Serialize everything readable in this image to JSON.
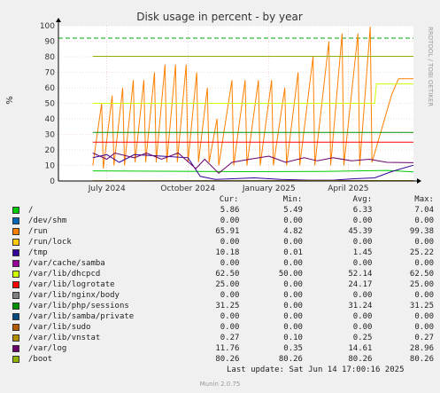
{
  "chart_data": {
    "type": "line",
    "title": "Disk usage in percent - by year",
    "ylabel": "%",
    "ylim": [
      0,
      100
    ],
    "yticks": [
      0,
      10,
      20,
      30,
      40,
      50,
      60,
      70,
      80,
      90,
      100
    ],
    "xlim": [
      "2024-05-07",
      "2025-06-14"
    ],
    "xticks": [
      {
        "label": "July 2024",
        "date": "2024-07-01"
      },
      {
        "label": "October 2024",
        "date": "2024-10-01"
      },
      {
        "label": "January 2025",
        "date": "2025-01-01"
      },
      {
        "label": "April 2025",
        "date": "2025-04-01"
      }
    ],
    "warning_line": 92,
    "grid": true,
    "side_text": "RRDTOOL / TOBI OETIKER",
    "columns": [
      "Cur:",
      "Min:",
      "Avg:",
      "Max:"
    ],
    "series": [
      {
        "name": "/",
        "color": "#00cc00",
        "cur": "5.86",
        "min": "5.49",
        "avg": "6.33",
        "max": "7.04",
        "points": [
          [
            "2024-06-15",
            6.5
          ],
          [
            "2024-09-01",
            6.3
          ],
          [
            "2024-12-01",
            6.0
          ],
          [
            "2025-03-01",
            6.1
          ],
          [
            "2025-05-15",
            6.8
          ],
          [
            "2025-06-14",
            5.86
          ]
        ]
      },
      {
        "name": "/dev/shm",
        "color": "#0066b3",
        "cur": "0.00",
        "min": "0.00",
        "avg": "0.00",
        "max": "0.00",
        "points": [
          [
            "2024-06-15",
            0
          ],
          [
            "2025-06-14",
            0
          ]
        ]
      },
      {
        "name": "/run",
        "color": "#ff8000",
        "cur": "65.91",
        "min": "4.82",
        "avg": "45.39",
        "max": "99.38",
        "points": [
          [
            "2024-06-15",
            10
          ],
          [
            "2024-06-25",
            50
          ],
          [
            "2024-06-27",
            8
          ],
          [
            "2024-07-07",
            55
          ],
          [
            "2024-07-09",
            10
          ],
          [
            "2024-07-19",
            60
          ],
          [
            "2024-07-21",
            10
          ],
          [
            "2024-07-31",
            65
          ],
          [
            "2024-08-02",
            12
          ],
          [
            "2024-08-12",
            65
          ],
          [
            "2024-08-14",
            12
          ],
          [
            "2024-08-24",
            70
          ],
          [
            "2024-08-26",
            12
          ],
          [
            "2024-09-05",
            75
          ],
          [
            "2024-09-07",
            12
          ],
          [
            "2024-09-17",
            75
          ],
          [
            "2024-09-19",
            12
          ],
          [
            "2024-09-29",
            75
          ],
          [
            "2024-10-01",
            12
          ],
          [
            "2024-10-11",
            70
          ],
          [
            "2024-10-13",
            12
          ],
          [
            "2024-10-23",
            60
          ],
          [
            "2024-10-25",
            12
          ],
          [
            "2024-11-03",
            40
          ],
          [
            "2024-11-05",
            10
          ],
          [
            "2024-11-20",
            65
          ],
          [
            "2024-11-22",
            10
          ],
          [
            "2024-12-05",
            65
          ],
          [
            "2024-12-07",
            10
          ],
          [
            "2024-12-20",
            65
          ],
          [
            "2024-12-22",
            10
          ],
          [
            "2025-01-04",
            65
          ],
          [
            "2025-01-06",
            10
          ],
          [
            "2025-01-19",
            60
          ],
          [
            "2025-01-21",
            10
          ],
          [
            "2025-02-03",
            70
          ],
          [
            "2025-02-05",
            10
          ],
          [
            "2025-02-20",
            80
          ],
          [
            "2025-02-22",
            10
          ],
          [
            "2025-03-10",
            90
          ],
          [
            "2025-03-12",
            10
          ],
          [
            "2025-03-25",
            95
          ],
          [
            "2025-03-27",
            10
          ],
          [
            "2025-04-12",
            95
          ],
          [
            "2025-04-14",
            10
          ],
          [
            "2025-04-26",
            99.38
          ],
          [
            "2025-04-28",
            12
          ],
          [
            "2025-05-20",
            55
          ],
          [
            "2025-05-28",
            65.91
          ],
          [
            "2025-06-14",
            65.91
          ]
        ]
      },
      {
        "name": "/run/lock",
        "color": "#ffcc00",
        "cur": "0.00",
        "min": "0.00",
        "avg": "0.00",
        "max": "0.00",
        "points": [
          [
            "2024-06-15",
            0
          ],
          [
            "2025-06-14",
            0
          ]
        ]
      },
      {
        "name": "/tmp",
        "color": "#330099",
        "cur": "10.18",
        "min": "0.01",
        "avg": "1.45",
        "max": "25.22",
        "points": [
          [
            "2024-06-15",
            15
          ],
          [
            "2024-07-01",
            17
          ],
          [
            "2024-07-15",
            12
          ],
          [
            "2024-08-01",
            17
          ],
          [
            "2024-09-01",
            16
          ],
          [
            "2024-10-01",
            15
          ],
          [
            "2024-10-15",
            3
          ],
          [
            "2024-11-01",
            1
          ],
          [
            "2024-12-15",
            2
          ],
          [
            "2025-01-15",
            1
          ],
          [
            "2025-02-15",
            0.5
          ],
          [
            "2025-03-15",
            0.5
          ],
          [
            "2025-04-10",
            1.5
          ],
          [
            "2025-05-01",
            2
          ],
          [
            "2025-05-20",
            6
          ],
          [
            "2025-06-14",
            10.18
          ]
        ]
      },
      {
        "name": "/var/cache/samba",
        "color": "#990099",
        "cur": "0.00",
        "min": "0.00",
        "avg": "0.00",
        "max": "0.00",
        "points": [
          [
            "2024-06-15",
            0
          ],
          [
            "2025-06-14",
            0
          ]
        ]
      },
      {
        "name": "/var/lib/dhcpcd",
        "color": "#ccff00",
        "cur": "62.50",
        "min": "50.00",
        "avg": "52.14",
        "max": "62.50",
        "points": [
          [
            "2024-06-15",
            50
          ],
          [
            "2025-05-01",
            50
          ],
          [
            "2025-05-03",
            62.5
          ],
          [
            "2025-06-14",
            62.5
          ]
        ]
      },
      {
        "name": "/var/lib/logrotate",
        "color": "#ff0000",
        "cur": "25.00",
        "min": "0.00",
        "avg": "24.17",
        "max": "25.00",
        "points": [
          [
            "2024-06-15",
            25
          ],
          [
            "2025-06-14",
            25
          ]
        ]
      },
      {
        "name": "/var/lib/nginx/body",
        "color": "#808080",
        "cur": "0.00",
        "min": "0.00",
        "avg": "0.00",
        "max": "0.00",
        "points": [
          [
            "2024-06-15",
            0
          ],
          [
            "2025-06-14",
            0
          ]
        ]
      },
      {
        "name": "/var/lib/php/sessions",
        "color": "#008f00",
        "cur": "31.25",
        "min": "0.00",
        "avg": "31.24",
        "max": "31.25",
        "points": [
          [
            "2024-06-15",
            31.25
          ],
          [
            "2025-06-14",
            31.25
          ]
        ]
      },
      {
        "name": "/var/lib/samba/private",
        "color": "#00487d",
        "cur": "0.00",
        "min": "0.00",
        "avg": "0.00",
        "max": "0.00",
        "points": [
          [
            "2024-06-15",
            0
          ],
          [
            "2025-06-14",
            0
          ]
        ]
      },
      {
        "name": "/var/lib/sudo",
        "color": "#b35a00",
        "cur": "0.00",
        "min": "0.00",
        "avg": "0.00",
        "max": "0.00",
        "points": [
          [
            "2024-06-15",
            0
          ],
          [
            "2025-06-14",
            0
          ]
        ]
      },
      {
        "name": "/var/lib/vnstat",
        "color": "#b38f00",
        "cur": "0.27",
        "min": "0.10",
        "avg": "0.25",
        "max": "0.27",
        "points": [
          [
            "2024-06-15",
            0.2
          ],
          [
            "2025-06-14",
            0.27
          ]
        ]
      },
      {
        "name": "/var/log",
        "color": "#6b006b",
        "cur": "11.76",
        "min": "0.35",
        "avg": "14.61",
        "max": "28.96",
        "points": [
          [
            "2024-06-15",
            18
          ],
          [
            "2024-07-01",
            14
          ],
          [
            "2024-07-10",
            18
          ],
          [
            "2024-08-01",
            15
          ],
          [
            "2024-08-15",
            18
          ],
          [
            "2024-09-01",
            14
          ],
          [
            "2024-09-20",
            18
          ],
          [
            "2024-10-10",
            8
          ],
          [
            "2024-10-20",
            14
          ],
          [
            "2024-11-05",
            5
          ],
          [
            "2024-11-20",
            12
          ],
          [
            "2024-12-10",
            14
          ],
          [
            "2025-01-01",
            16
          ],
          [
            "2025-01-20",
            12
          ],
          [
            "2025-02-10",
            15
          ],
          [
            "2025-02-25",
            13
          ],
          [
            "2025-03-15",
            15
          ],
          [
            "2025-04-05",
            13
          ],
          [
            "2025-04-25",
            14
          ],
          [
            "2025-05-15",
            12
          ],
          [
            "2025-06-14",
            11.76
          ]
        ]
      },
      {
        "name": "/boot",
        "color": "#8fb300",
        "cur": "80.26",
        "min": "80.26",
        "avg": "80.26",
        "max": "80.26",
        "points": [
          [
            "2024-06-15",
            80.26
          ],
          [
            "2025-06-14",
            80.26
          ]
        ]
      }
    ]
  },
  "footer": {
    "last_update": "Last update: Sat Jun 14 17:00:16 2025",
    "munin": "Munin 2.0.75"
  }
}
